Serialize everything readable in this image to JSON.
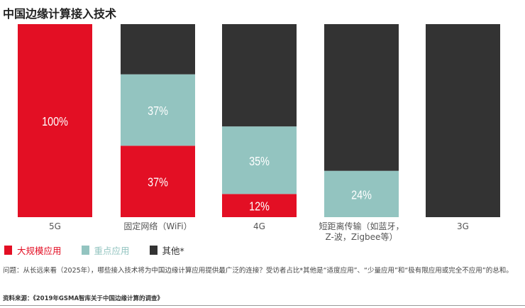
{
  "chart_data": {
    "type": "bar",
    "stacked": true,
    "title": "中国边缘计算接入技术",
    "categories": [
      "5G",
      "固定网络（WiFi）",
      "4G",
      "短距离传输（如蓝牙，Z-波，Zigbee等）",
      "3G"
    ],
    "category_lines": [
      [
        "5G"
      ],
      [
        "固定网络（WiFi）"
      ],
      [
        "4G"
      ],
      [
        "短距离传输（如蓝牙，",
        "Z-波，Zigbee等）"
      ],
      [
        "3G"
      ]
    ],
    "series": [
      {
        "name": "大规模应用",
        "color": "#e30f24",
        "values": [
          100,
          37,
          12,
          0,
          0
        ],
        "labels": [
          "100%",
          "37%",
          "12%",
          "",
          ""
        ]
      },
      {
        "name": "重点应用",
        "color": "#93c4c0",
        "values": [
          0,
          37,
          35,
          24,
          0
        ],
        "labels": [
          "",
          "37%",
          "35%",
          "24%",
          ""
        ]
      },
      {
        "name": "其他*",
        "color": "#333333",
        "values": [
          0,
          26,
          53,
          76,
          100
        ],
        "labels": [
          "",
          "",
          "",
          "",
          ""
        ]
      }
    ],
    "ylim": [
      0,
      100
    ],
    "legend": "bottom-left",
    "grid": false
  },
  "note": "问题：从长远来看（2025年），哪些接入技术将为中国边缘计算应用提供最广泛的连接？受访者占比*其他是“适度应用”、“少量应用”和“极有限应用或完全不应用”的总和。",
  "source": "资料来源：《2019年GSMA智库关于中国边缘计算的调查》"
}
